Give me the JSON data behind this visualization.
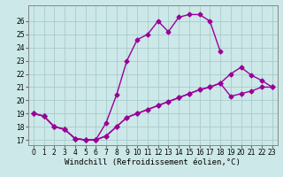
{
  "bg_color": "#cce8e8",
  "grid_color": "#aacccc",
  "line_color": "#990099",
  "marker": "D",
  "markersize": 2.5,
  "linewidth": 1.0,
  "xlabel": "Windchill (Refroidissement éolien,°C)",
  "xlabel_fontsize": 6.5,
  "tick_fontsize": 5.5,
  "xlim": [
    -0.5,
    23.5
  ],
  "ylim": [
    16.6,
    27.2
  ],
  "yticks": [
    17,
    18,
    19,
    20,
    21,
    22,
    23,
    24,
    25,
    26
  ],
  "xticks": [
    0,
    1,
    2,
    3,
    4,
    5,
    6,
    7,
    8,
    9,
    10,
    11,
    12,
    13,
    14,
    15,
    16,
    17,
    18,
    19,
    20,
    21,
    22,
    23
  ],
  "curve1_x": [
    0,
    1,
    2,
    3,
    4,
    5,
    6,
    7,
    8,
    9,
    10,
    11,
    12,
    13,
    14,
    15,
    16,
    17,
    18
  ],
  "curve1_y": [
    19.0,
    18.8,
    18.0,
    17.8,
    17.1,
    17.0,
    17.0,
    18.3,
    20.4,
    23.0,
    24.6,
    25.0,
    26.0,
    25.2,
    26.3,
    26.5,
    26.5,
    26.0,
    23.7
  ],
  "curve2_x": [
    0,
    1,
    2,
    3,
    4,
    5,
    6,
    7,
    8,
    9,
    10,
    11,
    12,
    13,
    14,
    15,
    16,
    17,
    18,
    19,
    20,
    21,
    22,
    23
  ],
  "curve2_y": [
    19.0,
    18.8,
    18.0,
    17.8,
    17.1,
    17.0,
    17.0,
    17.3,
    18.0,
    18.7,
    19.0,
    19.3,
    19.6,
    19.9,
    20.2,
    20.5,
    20.8,
    21.0,
    21.3,
    20.3,
    20.5,
    20.7,
    21.0,
    21.0
  ],
  "curve3_x": [
    0,
    1,
    2,
    3,
    4,
    5,
    6,
    7,
    8,
    9,
    10,
    11,
    12,
    13,
    14,
    15,
    16,
    17,
    18,
    19,
    20,
    21,
    22,
    23
  ],
  "curve3_y": [
    19.0,
    18.8,
    18.0,
    17.8,
    17.1,
    17.0,
    17.0,
    17.3,
    18.0,
    18.7,
    19.0,
    19.3,
    19.6,
    19.9,
    20.2,
    20.5,
    20.8,
    21.0,
    21.3,
    22.0,
    22.5,
    21.9,
    21.5,
    21.0
  ]
}
